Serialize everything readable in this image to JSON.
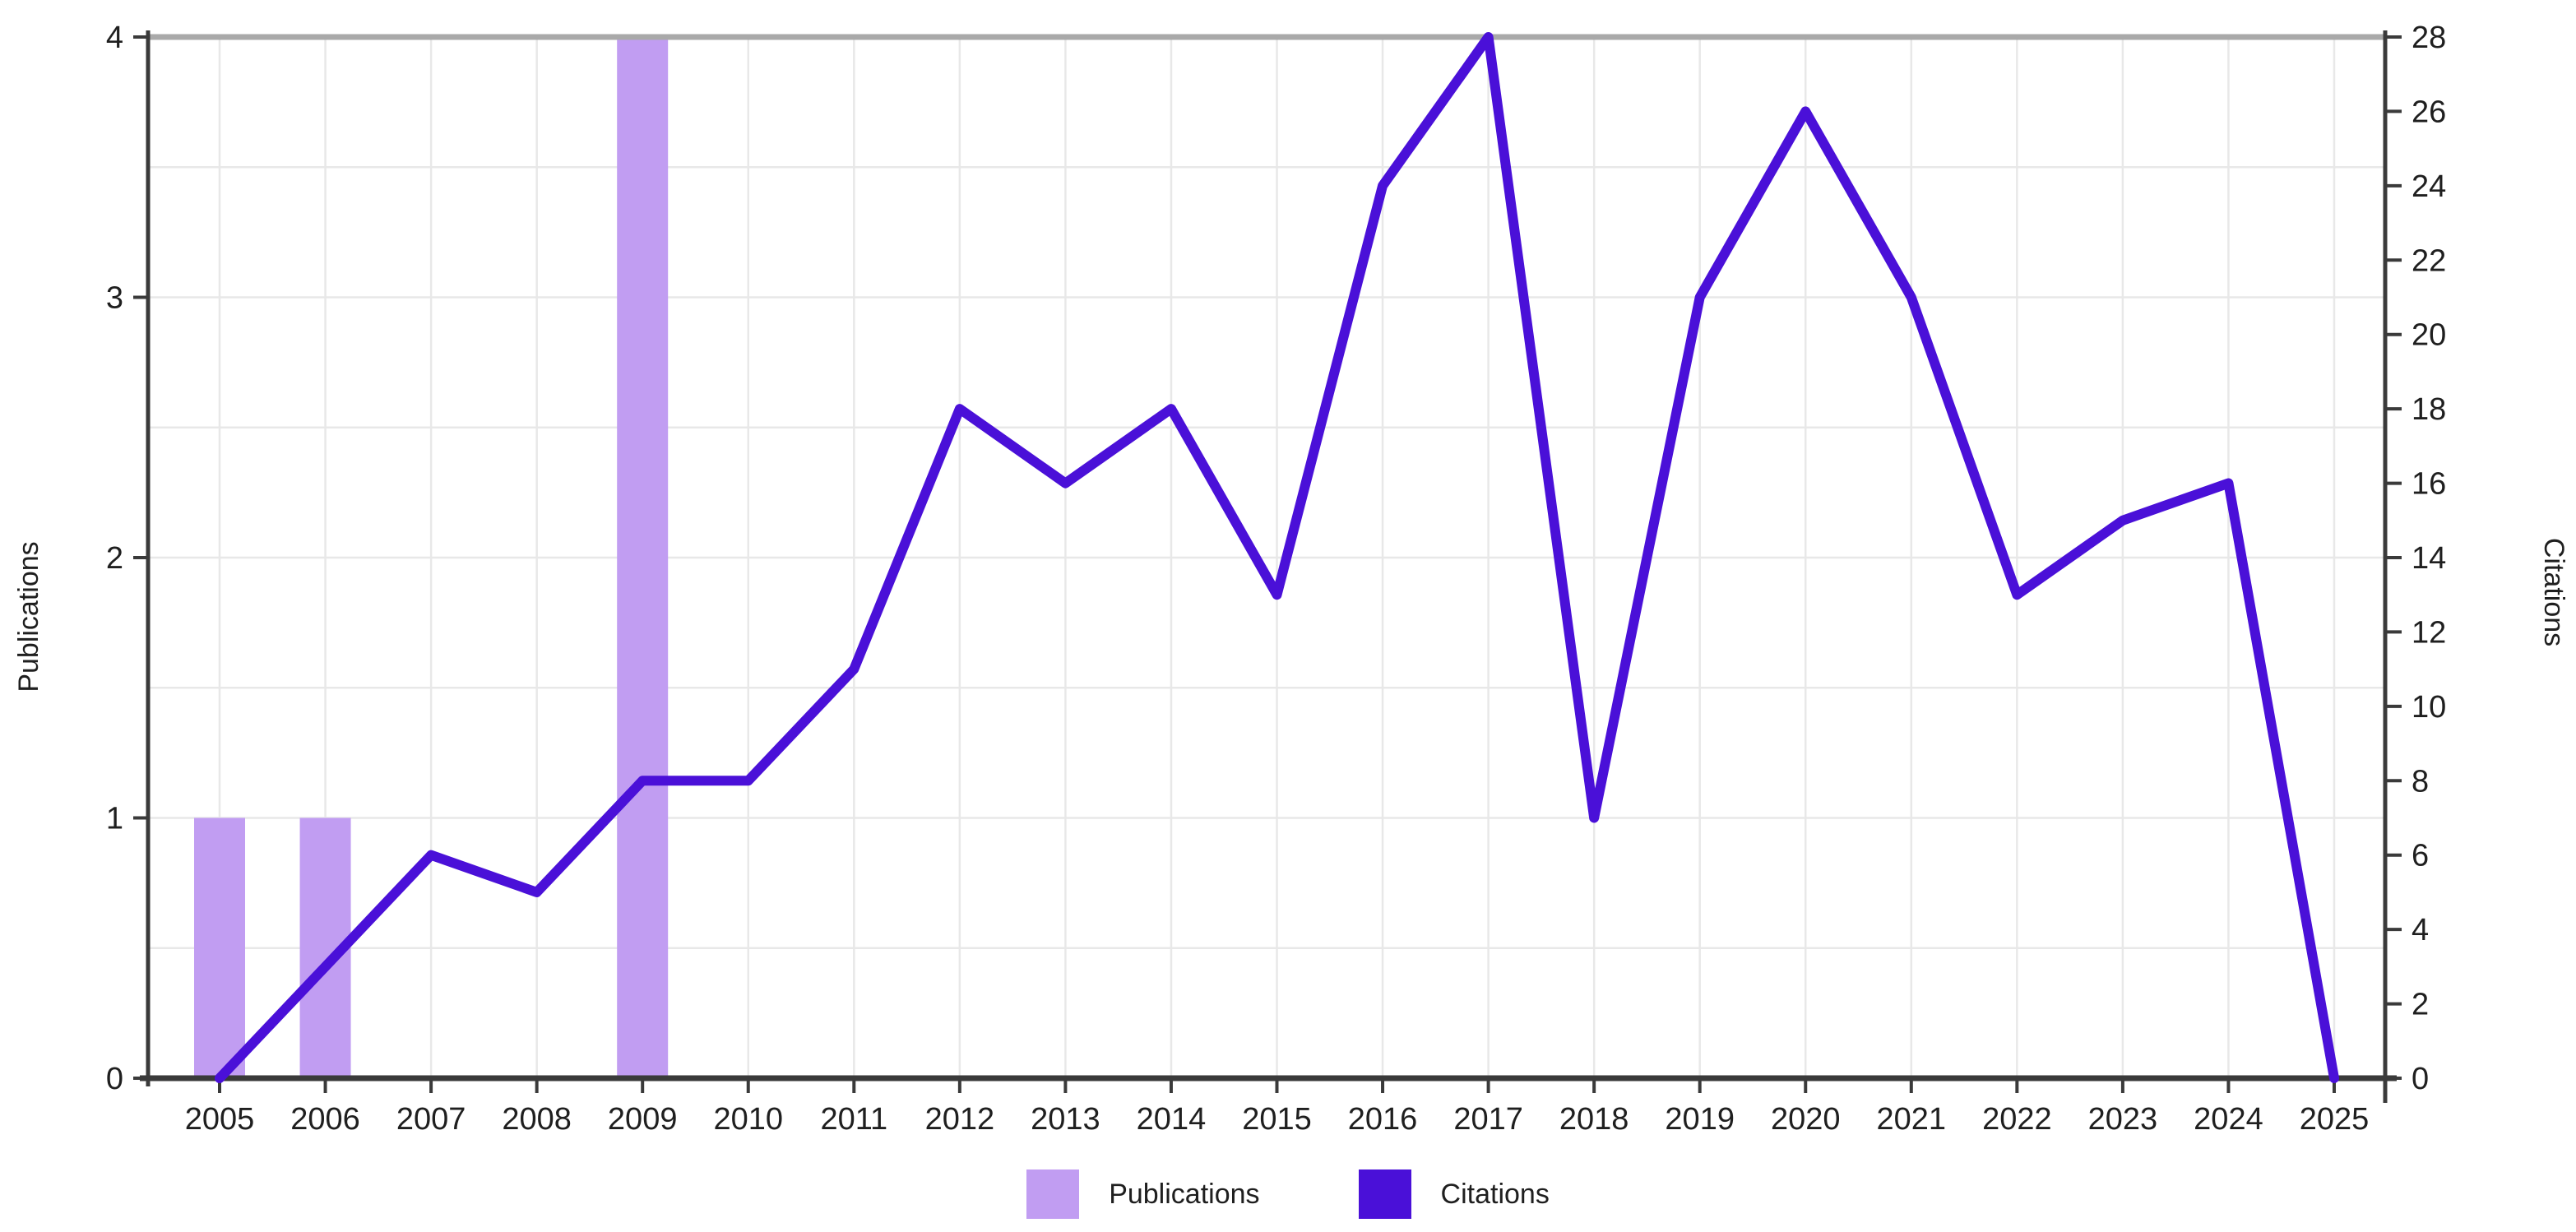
{
  "chart_data": {
    "type": "combo",
    "categories": [
      "2005",
      "2006",
      "2007",
      "2008",
      "2009",
      "2010",
      "2011",
      "2012",
      "2013",
      "2014",
      "2015",
      "2016",
      "2017",
      "2018",
      "2019",
      "2020",
      "2021",
      "2022",
      "2023",
      "2024",
      "2025"
    ],
    "series": [
      {
        "name": "Publications",
        "type": "bar",
        "axis": "left",
        "color": "#c19df2",
        "values": [
          1,
          1,
          0,
          0,
          4,
          0,
          0,
          0,
          0,
          0,
          0,
          0,
          0,
          0,
          0,
          0,
          0,
          0,
          0,
          0,
          0
        ]
      },
      {
        "name": "Citations",
        "type": "line",
        "axis": "right",
        "color": "#4a10d8",
        "values": [
          0,
          3,
          6,
          5,
          8,
          8,
          11,
          18,
          16,
          18,
          13,
          24,
          28,
          7,
          21,
          26,
          21,
          13,
          15,
          16,
          0
        ]
      }
    ],
    "left_axis": {
      "label": "Publications",
      "range": [
        0,
        4
      ],
      "tick_labels": [
        "0",
        "1",
        "2",
        "3",
        "4"
      ]
    },
    "right_axis": {
      "label": "Citations",
      "range": [
        0,
        28
      ],
      "tick_labels": [
        "0",
        "2",
        "4",
        "6",
        "8",
        "10",
        "12",
        "14",
        "16",
        "18",
        "20",
        "22",
        "24",
        "26",
        "28"
      ]
    },
    "grid": true,
    "legend_position": "bottom"
  },
  "colors": {
    "bar": "#c19df2",
    "line": "#4a10d8",
    "grid": "#e8e8e8",
    "axis": "#3a3a3a",
    "axis_top": "#a9a9a9",
    "text": "#1f1f1f",
    "background": "#ffffff"
  }
}
